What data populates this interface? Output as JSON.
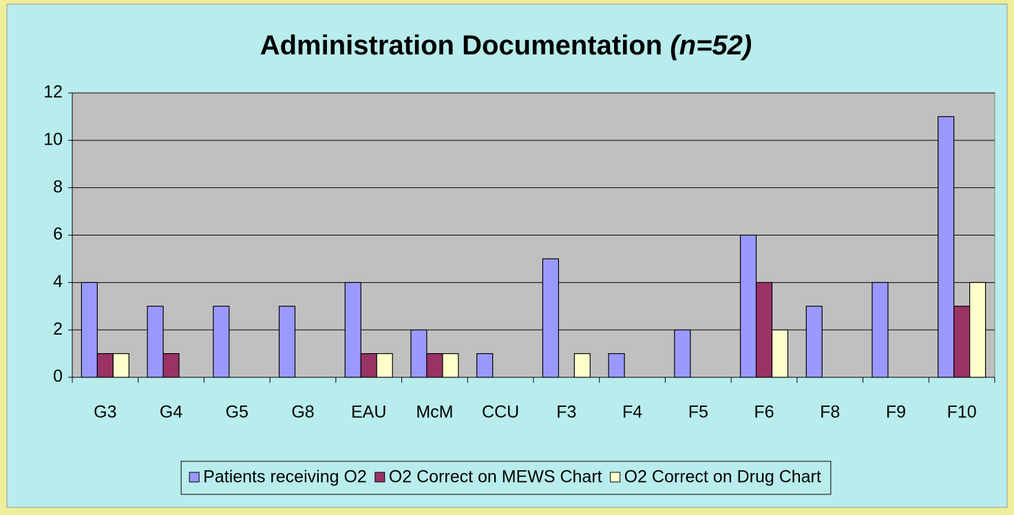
{
  "chart_data": {
    "type": "bar",
    "title": "Administration Documentation",
    "title_suffix": "(n=52)",
    "categories": [
      "G3",
      "G4",
      "G5",
      "G8",
      "EAU",
      "McM",
      "CCU",
      "F3",
      "F4",
      "F5",
      "F6",
      "F8",
      "F9",
      "F10"
    ],
    "series": [
      {
        "name": "Patients receiving O2",
        "color": "#9999ff",
        "values": [
          4,
          3,
          3,
          3,
          4,
          2,
          1,
          5,
          1,
          2,
          6,
          3,
          4,
          11
        ]
      },
      {
        "name": "O2 Correct on MEWS Chart",
        "color": "#993366",
        "values": [
          1,
          1,
          0,
          0,
          1,
          1,
          0,
          0,
          0,
          0,
          4,
          0,
          0,
          3
        ]
      },
      {
        "name": "O2 Correct on Drug Chart",
        "color": "#ffffcc",
        "values": [
          1,
          0,
          0,
          0,
          1,
          1,
          0,
          1,
          0,
          0,
          2,
          0,
          0,
          4
        ]
      }
    ],
    "ylim": [
      0,
      12
    ],
    "yticks": [
      0,
      2,
      4,
      6,
      8,
      10,
      12
    ],
    "grid": true,
    "legend": "bottom"
  }
}
